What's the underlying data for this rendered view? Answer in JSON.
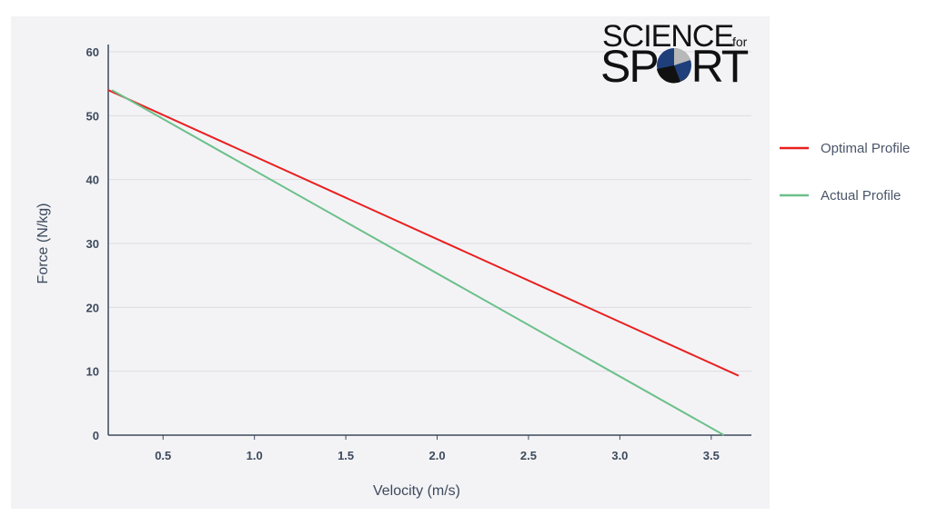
{
  "chart_data": {
    "type": "line",
    "xlabel": "Velocity (m/s)",
    "ylabel": "Force (N/kg)",
    "xlim": [
      0.2,
      3.72
    ],
    "ylim": [
      0,
      60
    ],
    "x_ticks": [
      "0.5",
      "1.0",
      "1.5",
      "2.0",
      "2.5",
      "3.0",
      "3.5"
    ],
    "y_ticks": [
      "0",
      "10",
      "20",
      "30",
      "40",
      "50",
      "60"
    ],
    "grid": true,
    "legend_position": "right",
    "series": [
      {
        "name": "Optimal Profile",
        "color": "#e8201f",
        "x": [
          0.2,
          3.65
        ],
        "y": [
          54,
          9.3
        ]
      },
      {
        "name": "Actual Profile",
        "color": "#6cc08a",
        "x": [
          0.22,
          3.57
        ],
        "y": [
          54,
          0
        ]
      }
    ]
  },
  "logo": {
    "line1": "SCIENCE",
    "line1_small": "for",
    "line2": "SPORT",
    "icon": "ball-icon",
    "colors": {
      "dark": "#111111",
      "blue": "#1f3f7a",
      "grey": "#b8b8b8"
    }
  }
}
